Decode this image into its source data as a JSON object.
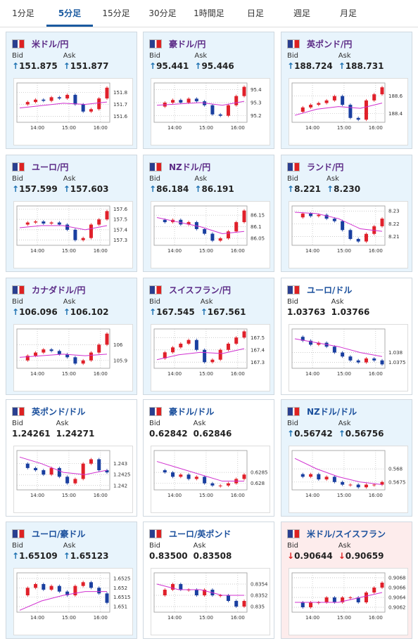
{
  "tabs": [
    "1分足",
    "5分足",
    "15分足",
    "30分足",
    "1時間足",
    "日足",
    "週足",
    "月足"
  ],
  "active_tab": 1,
  "labels": {
    "bid": "Bid",
    "ask": "Ask"
  },
  "time_ticks": [
    "14:00",
    "15:00",
    "16:00"
  ],
  "cards": [
    {
      "name": "米ドル/円",
      "arrow": "↑",
      "bid": "151.875",
      "ask": "151.877",
      "ylim": [
        151.55,
        151.88
      ],
      "yticks": [
        151.6,
        151.7,
        151.8
      ],
      "close": [
        151.7,
        151.72,
        151.74,
        151.73,
        151.76,
        151.75,
        151.78,
        151.7,
        151.64,
        151.66,
        151.75,
        151.84
      ],
      "ma": [
        151.67,
        151.69,
        151.71,
        151.7,
        151.72
      ]
    },
    {
      "name": "豪ドル/円",
      "arrow": "↑",
      "bid": "95.441",
      "ask": "95.446",
      "ylim": [
        95.15,
        95.45
      ],
      "yticks": [
        95.2,
        95.3,
        95.4
      ],
      "close": [
        95.27,
        95.3,
        95.32,
        95.3,
        95.33,
        95.31,
        95.28,
        95.21,
        95.2,
        95.28,
        95.35,
        95.42
      ],
      "ma": [
        95.28,
        95.29,
        95.3,
        95.28,
        95.31
      ]
    },
    {
      "name": "英ポンド/円",
      "arrow": "↑",
      "bid": "188.724",
      "ask": "188.731",
      "ylim": [
        188.3,
        188.75
      ],
      "yticks": [
        188.4,
        188.6
      ],
      "close": [
        188.42,
        188.47,
        188.5,
        188.52,
        188.55,
        188.6,
        188.5,
        188.35,
        188.33,
        188.55,
        188.62,
        188.7
      ],
      "ma": [
        188.38,
        188.45,
        188.48,
        188.46,
        188.52
      ]
    },
    {
      "name": "ユーロ/円",
      "arrow": "↑",
      "bid": "157.599",
      "ask": "157.603",
      "ylim": [
        157.25,
        157.63
      ],
      "yticks": [
        157.3,
        157.4,
        157.5,
        157.6
      ],
      "close": [
        157.45,
        157.47,
        157.48,
        157.46,
        157.47,
        157.45,
        157.4,
        157.3,
        157.32,
        157.45,
        157.5,
        157.58
      ],
      "ma": [
        157.42,
        157.44,
        157.44,
        157.4,
        157.44
      ]
    },
    {
      "name": "NZドル/円",
      "arrow": "↑",
      "bid": "86.184",
      "ask": "86.191",
      "ylim": [
        86.02,
        86.19
      ],
      "yticks": [
        86.05,
        86.1,
        86.15
      ],
      "close": [
        86.13,
        86.12,
        86.13,
        86.11,
        86.12,
        86.09,
        86.07,
        86.04,
        86.05,
        86.08,
        86.12,
        86.17
      ],
      "ma": [
        86.14,
        86.12,
        86.1,
        86.07,
        86.08
      ]
    },
    {
      "name": "ランド/円",
      "arrow": "↑",
      "bid": "8.221",
      "ask": "8.230",
      "ylim": [
        8.203,
        8.234
      ],
      "yticks": [
        8.21,
        8.22,
        8.23
      ],
      "close": [
        8.225,
        8.228,
        8.226,
        8.227,
        8.224,
        8.222,
        8.215,
        8.208,
        8.206,
        8.212,
        8.218,
        8.224
      ],
      "ma": [
        8.229,
        8.228,
        8.224,
        8.216,
        8.214
      ]
    },
    {
      "name": "カナダドル/円",
      "arrow": "↑",
      "bid": "106.096",
      "ask": "106.102",
      "ylim": [
        105.85,
        106.1
      ],
      "yticks": [
        105.9,
        106
      ],
      "close": [
        105.9,
        105.93,
        105.95,
        105.97,
        105.96,
        105.94,
        105.92,
        105.88,
        105.9,
        105.95,
        106.0,
        106.07
      ],
      "ma": [
        105.92,
        105.93,
        105.94,
        105.93,
        105.94
      ]
    },
    {
      "name": "スイスフラン/円",
      "arrow": "↑",
      "bid": "167.545",
      "ask": "167.561",
      "ylim": [
        167.25,
        167.57
      ],
      "yticks": [
        167.3,
        167.4,
        167.5
      ],
      "close": [
        167.33,
        167.38,
        167.42,
        167.45,
        167.48,
        167.4,
        167.3,
        167.32,
        167.4,
        167.45,
        167.5,
        167.55
      ],
      "ma": [
        167.32,
        167.36,
        167.38,
        167.37,
        167.41
      ]
    },
    {
      "name": "ユーロ/ドル",
      "bid": "1.03763",
      "ask": "1.03766",
      "ylim": [
        1.0372,
        1.0392
      ],
      "yticks": [
        1.0375,
        1.038
      ],
      "close": [
        1.0388,
        1.0386,
        1.0384,
        1.0385,
        1.0383,
        1.038,
        1.0378,
        1.0376,
        1.0375,
        1.0377,
        1.0376,
        1.0374
      ],
      "ma": [
        1.0387,
        1.0385,
        1.0383,
        1.038,
        1.0378
      ]
    },
    {
      "name": "英ポンド/ドル",
      "bid": "1.24261",
      "ask": "1.24271",
      "ylim": [
        1.2418,
        1.2436
      ],
      "yticks": [
        1.242,
        1.2425,
        1.243
      ],
      "close": [
        1.243,
        1.2428,
        1.2427,
        1.2425,
        1.2428,
        1.2424,
        1.2421,
        1.2423,
        1.243,
        1.2432,
        1.2427,
        1.2426
      ],
      "ma": [
        1.2433,
        1.243,
        1.2426,
        1.2425,
        1.2427
      ]
    },
    {
      "name": "豪ドル/ドル",
      "bid": "0.62842",
      "ask": "0.62846",
      "ylim": [
        0.6277,
        0.6295
      ],
      "yticks": [
        0.628,
        0.6285
      ],
      "close": [
        0.6286,
        0.6285,
        0.6283,
        0.6284,
        0.6282,
        0.6283,
        0.628,
        0.6279,
        0.6279,
        0.628,
        0.6282,
        0.6284
      ],
      "ma": [
        0.629,
        0.6287,
        0.6284,
        0.6281,
        0.6281
      ]
    },
    {
      "name": "NZドル/ドル",
      "arrow": "↑",
      "bid": "0.56742",
      "ask": "0.56756",
      "ylim": [
        0.5672,
        0.5687
      ],
      "yticks": [
        0.5675,
        0.568
      ],
      "close": [
        0.5678,
        0.5677,
        0.5678,
        0.5676,
        0.5677,
        0.5675,
        0.5674,
        0.5674,
        0.5673,
        0.5674,
        0.5674,
        0.5675
      ],
      "ma": [
        0.5684,
        0.568,
        0.5677,
        0.5675,
        0.5674
      ]
    },
    {
      "name": "ユーロ/豪ドル",
      "arrow": "↑",
      "bid": "1.65109",
      "ask": "1.65123",
      "ylim": [
        1.6507,
        1.6528
      ],
      "yticks": [
        1.651,
        1.6515,
        1.652,
        1.6525
      ],
      "close": [
        1.6516,
        1.652,
        1.6522,
        1.6519,
        1.6521,
        1.6518,
        1.6516,
        1.6521,
        1.6523,
        1.652,
        1.6517,
        1.6512
      ],
      "ma": [
        1.6508,
        1.6513,
        1.6516,
        1.6518,
        1.6518
      ]
    },
    {
      "name": "ユーロ/英ポンド",
      "bid": "0.83500",
      "ask": "0.83508",
      "ylim": [
        0.8349,
        0.8356
      ],
      "yticks": [
        0.835,
        0.8352,
        0.8354
      ],
      "close": [
        0.8352,
        0.8353,
        0.8354,
        0.8353,
        0.8353,
        0.8352,
        0.8353,
        0.8352,
        0.8352,
        0.8351,
        0.835,
        0.8351
      ],
      "ma": [
        0.8354,
        0.8353,
        0.8353,
        0.8352,
        0.8352
      ]
    },
    {
      "name": "米ドル/スイスフラン",
      "arrow": "↓",
      "bid": "0.90644",
      "ask": "0.90659",
      "ylim": [
        0.9061,
        0.9069
      ],
      "yticks": [
        0.9062,
        0.9064,
        0.9066,
        0.9068
      ],
      "close": [
        0.9063,
        0.9062,
        0.9063,
        0.9063,
        0.9064,
        0.9063,
        0.9064,
        0.9064,
        0.9063,
        0.9065,
        0.9066,
        0.9067
      ],
      "ma": [
        0.9063,
        0.9063,
        0.9063,
        0.9064,
        0.9065
      ]
    }
  ]
}
